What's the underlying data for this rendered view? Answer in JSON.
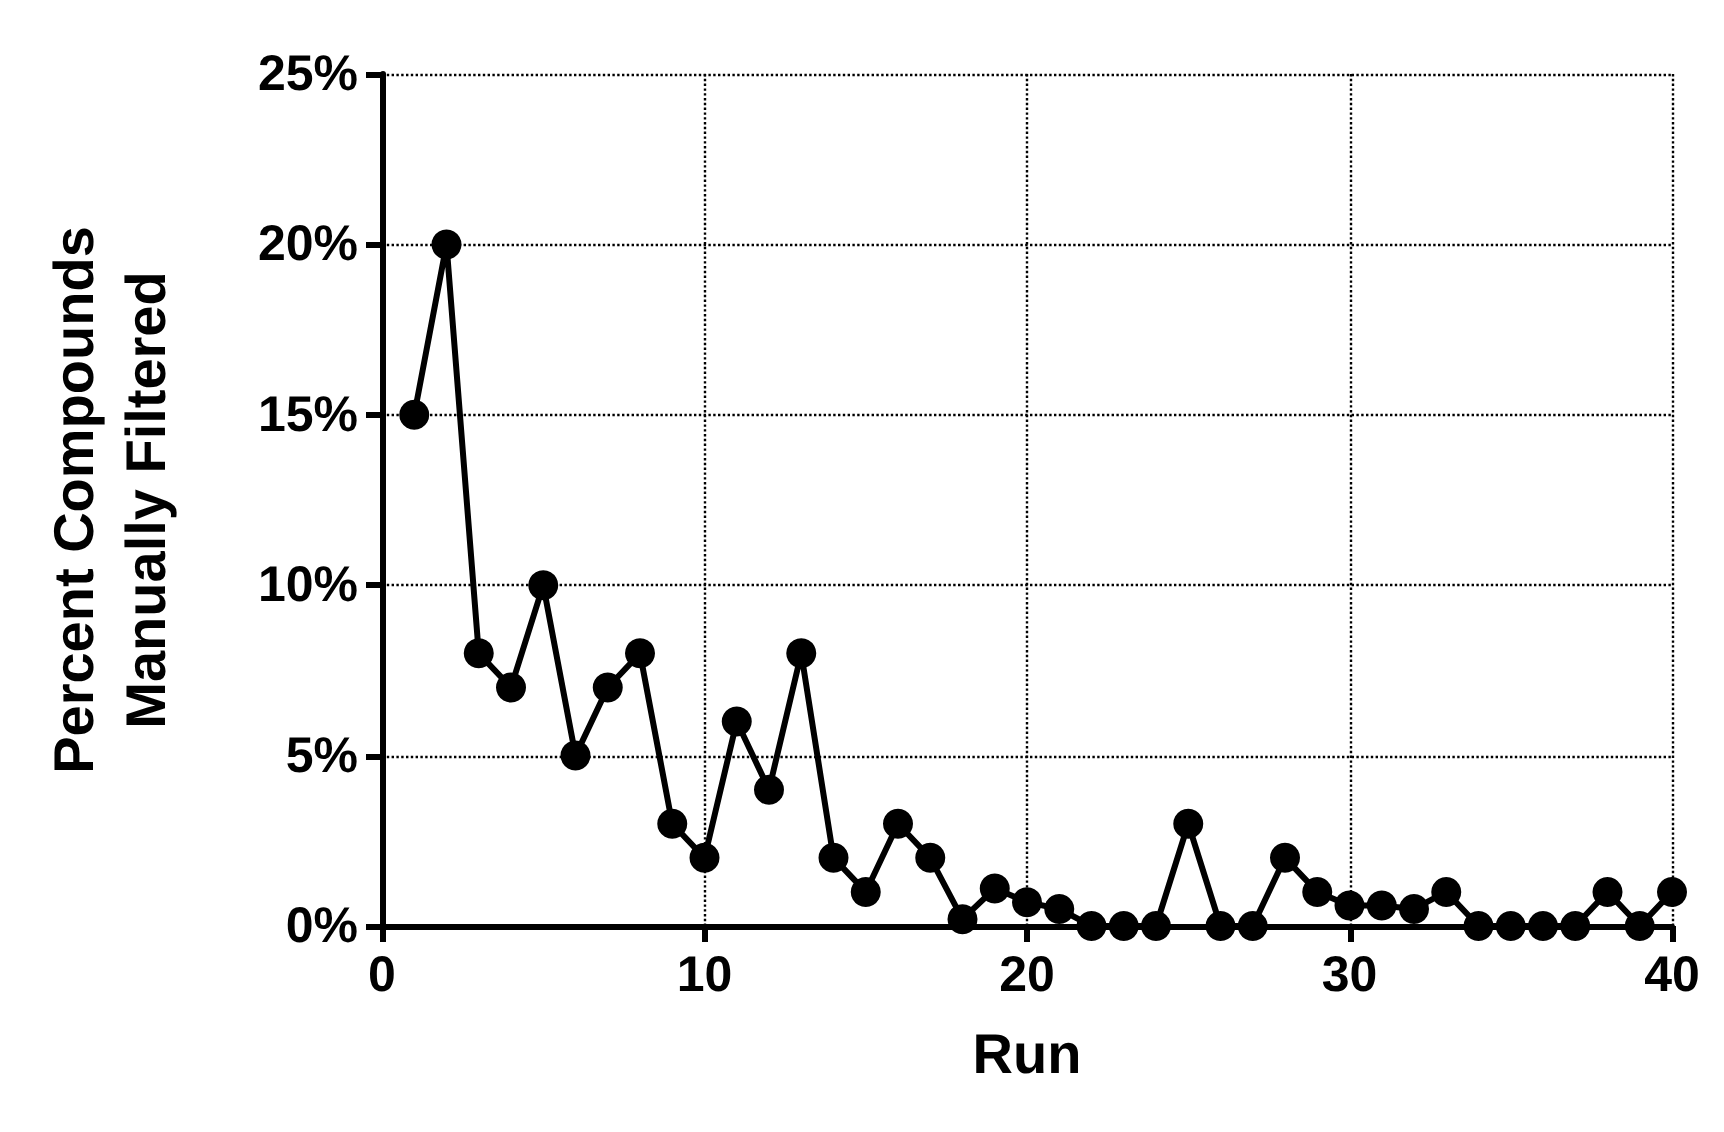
{
  "chart_data": {
    "type": "line",
    "xlabel": "Run",
    "ylabel": "Percent Compounds\nManually Filtered",
    "x": [
      1,
      2,
      3,
      4,
      5,
      6,
      7,
      8,
      9,
      10,
      11,
      12,
      13,
      14,
      15,
      16,
      17,
      18,
      19,
      20,
      21,
      22,
      23,
      24,
      25,
      26,
      27,
      28,
      29,
      30,
      31,
      32,
      33,
      34,
      35,
      36,
      37,
      38,
      39,
      40
    ],
    "series": [
      {
        "color": "#000000",
        "values": [
          15,
          20,
          8,
          7,
          10,
          5,
          7,
          8,
          3,
          2,
          6,
          4,
          8,
          2,
          1,
          3,
          2,
          0.2,
          1.1,
          0.7,
          0.5,
          0,
          0,
          0,
          3,
          0,
          0,
          2,
          1,
          0.6,
          0.6,
          0.5,
          1,
          0,
          0,
          0,
          0,
          1,
          0,
          1
        ]
      }
    ],
    "xlim": [
      0,
      40
    ],
    "xticks": [
      0,
      10,
      20,
      30,
      40
    ],
    "ylim": [
      0,
      25
    ],
    "yticks": [
      {
        "value": 0,
        "label": "0%"
      },
      {
        "value": 5,
        "label": "5%"
      },
      {
        "value": 10,
        "label": "10%"
      },
      {
        "value": 15,
        "label": "15%"
      },
      {
        "value": 20,
        "label": "20%"
      },
      {
        "value": 25,
        "label": "25%"
      }
    ],
    "grid": true,
    "marker": "circle",
    "line_style": "solid"
  }
}
